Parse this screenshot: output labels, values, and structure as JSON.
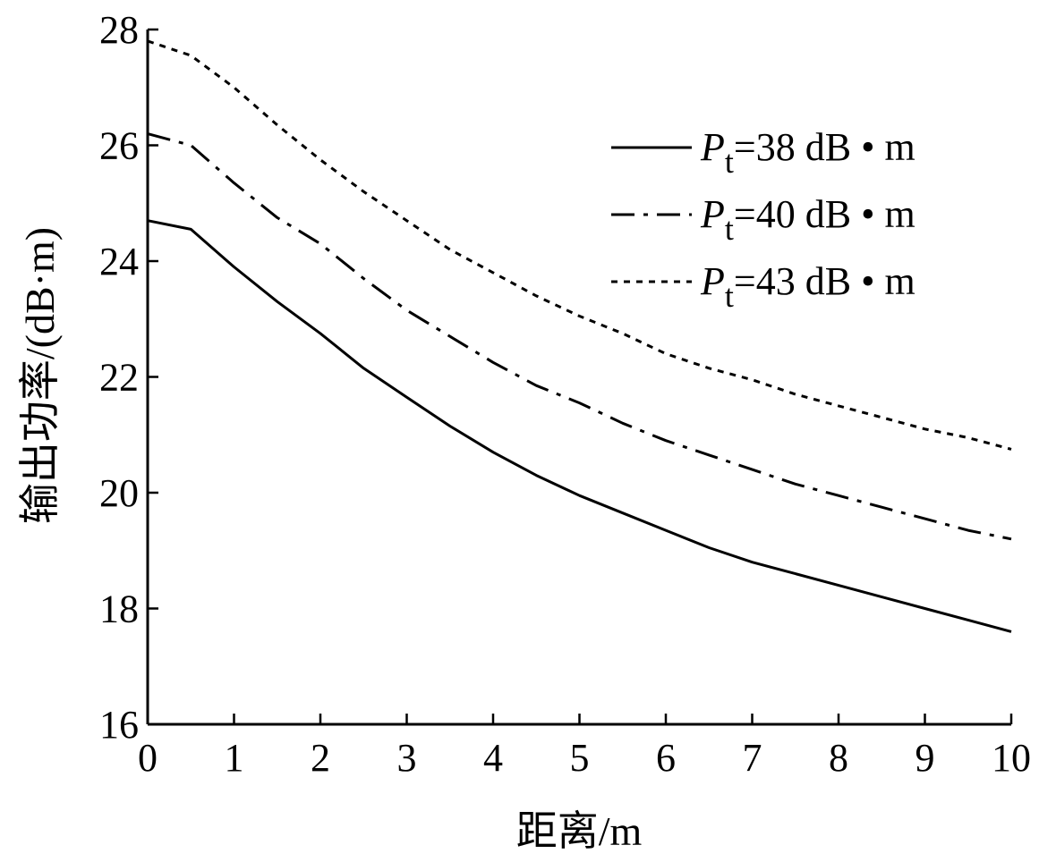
{
  "chart_data": {
    "type": "line",
    "title": "",
    "xlabel": "距离/m",
    "ylabel": "输出功率/(dB·m)",
    "xlim": [
      0,
      10
    ],
    "ylim": [
      16,
      28
    ],
    "x_ticks": [
      0,
      1,
      2,
      3,
      4,
      5,
      6,
      7,
      8,
      9,
      10
    ],
    "y_ticks": [
      16,
      18,
      20,
      22,
      24,
      26,
      28
    ],
    "grid": false,
    "legend_position": "top-right",
    "x": [
      0,
      0.5,
      1,
      1.5,
      2,
      2.5,
      3,
      3.5,
      4,
      4.5,
      5,
      5.5,
      6,
      6.5,
      7,
      7.5,
      8,
      8.5,
      9,
      9.5,
      10
    ],
    "series": [
      {
        "name_prefix": "P",
        "name_sub": "t",
        "name_suffix": "=38 dB • m",
        "style": "solid",
        "values": [
          24.7,
          24.55,
          23.9,
          23.3,
          22.75,
          22.15,
          21.65,
          21.15,
          20.7,
          20.3,
          19.95,
          19.65,
          19.35,
          19.05,
          18.8,
          18.6,
          18.4,
          18.2,
          18.0,
          17.8,
          17.6
        ]
      },
      {
        "name_prefix": "P",
        "name_sub": "t",
        "name_suffix": "=40 dB • m",
        "style": "dashdot",
        "values": [
          26.2,
          26.0,
          25.35,
          24.75,
          24.3,
          23.7,
          23.15,
          22.7,
          22.25,
          21.85,
          21.55,
          21.2,
          20.9,
          20.65,
          20.4,
          20.15,
          19.95,
          19.75,
          19.55,
          19.35,
          19.2
        ]
      },
      {
        "name_prefix": "P",
        "name_sub": "t",
        "name_suffix": "=43 dB • m",
        "style": "dotted",
        "values": [
          27.8,
          27.55,
          27.0,
          26.35,
          25.75,
          25.2,
          24.7,
          24.2,
          23.8,
          23.4,
          23.05,
          22.75,
          22.4,
          22.15,
          21.95,
          21.7,
          21.5,
          21.3,
          21.1,
          20.95,
          20.75
        ]
      }
    ]
  }
}
